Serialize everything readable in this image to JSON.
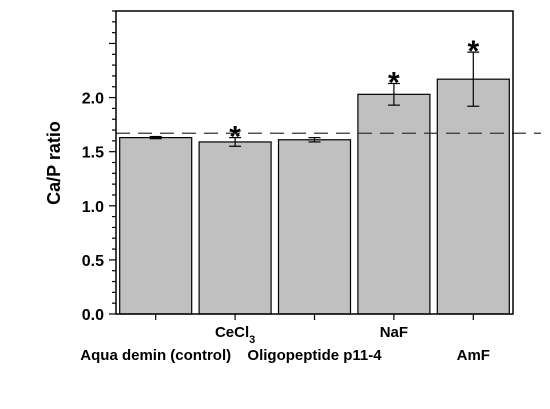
{
  "chart_data": {
    "type": "bar",
    "title": "",
    "xlabel": "",
    "ylabel": "Ca/P ratio",
    "ylim": [
      0,
      2.8
    ],
    "yticks": [
      "0.0",
      "0.5",
      "1.0",
      "1.5",
      "2.0"
    ],
    "grid": false,
    "categories": [
      {
        "text": "Aqua demin (control)"
      },
      {
        "text": "CeCl",
        "sub": "3"
      },
      {
        "text": "Oligopeptide p11-4"
      },
      {
        "text": "NaF"
      },
      {
        "text": "AmF"
      }
    ],
    "values": [
      1.63,
      1.59,
      1.61,
      2.03,
      2.17
    ],
    "errors": [
      0.01,
      0.04,
      0.02,
      0.1,
      0.25
    ],
    "significance": [
      "",
      "*",
      "",
      "*",
      "*"
    ],
    "reference_line": {
      "y": 1.67,
      "style": "dashed"
    },
    "bar_color": "#c0c0c0"
  }
}
